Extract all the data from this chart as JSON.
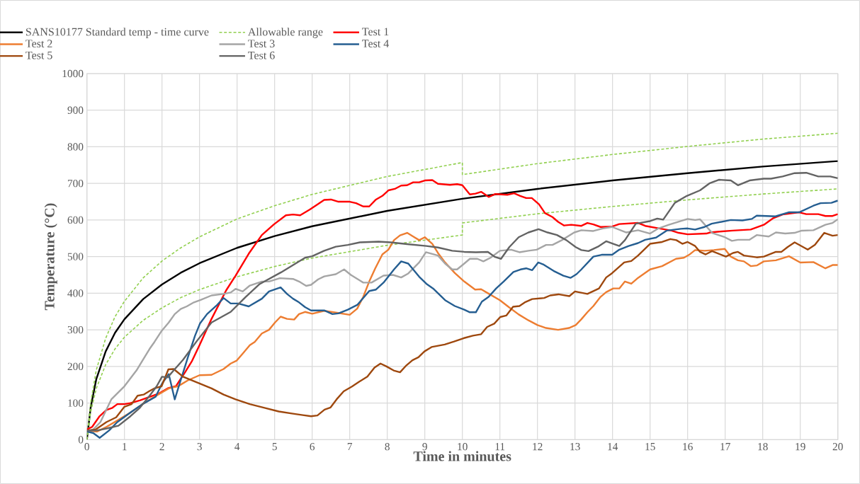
{
  "chart_data": {
    "type": "line",
    "xlabel": "Time in minutes",
    "ylabel": "Temperature (°C)",
    "xlim": [
      0,
      20
    ],
    "xticks": [
      0,
      1,
      2,
      3,
      4,
      5,
      6,
      7,
      8,
      9,
      10,
      11,
      12,
      13,
      14,
      15,
      16,
      17,
      18,
      19,
      20
    ],
    "ylim": [
      0,
      1000
    ],
    "yticks": [
      0,
      100,
      200,
      300,
      400,
      500,
      600,
      700,
      800,
      900,
      1000
    ],
    "grid": true,
    "legend": "top",
    "series": [
      {
        "name": "SANS10177 Standard temp - time curve",
        "color": "#000000",
        "line_style": "solid",
        "x": [
          0,
          0.1,
          0.25,
          0.5,
          0.75,
          1,
          1.5,
          2,
          2.5,
          3,
          4,
          5,
          6,
          8,
          10,
          12,
          14,
          16,
          18,
          20
        ],
        "values": [
          0,
          88,
          165,
          241,
          292,
          329,
          384,
          424,
          456,
          482,
          524,
          556,
          583,
          625,
          658,
          685,
          708,
          728,
          746,
          761
        ]
      },
      {
        "name": "Allowable range",
        "color": "#92d050",
        "line_style": "dashed",
        "x": [
          0,
          0.1,
          0.25,
          0.5,
          0.75,
          1,
          1.5,
          2,
          2.5,
          3,
          4,
          5,
          6,
          8,
          10,
          10,
          12,
          14,
          16,
          18,
          20
        ],
        "values": [
          0,
          101,
          190,
          277,
          336,
          378,
          442,
          488,
          524,
          554,
          603,
          639,
          670,
          719,
          757,
          724,
          754,
          779,
          801,
          821,
          837
        ]
      },
      {
        "color": "#92d050",
        "line_style": "dashed",
        "x": [
          0,
          0.1,
          0.25,
          0.5,
          0.75,
          1,
          1.5,
          2,
          2.5,
          3,
          4,
          5,
          6,
          8,
          10,
          10,
          12,
          14,
          16,
          18,
          20
        ],
        "values": [
          0,
          75,
          140,
          205,
          248,
          280,
          326,
          360,
          388,
          410,
          445,
          473,
          496,
          531,
          559,
          592,
          617,
          637,
          655,
          671,
          685
        ]
      },
      {
        "name": "Test 1",
        "color": "#ff0000",
        "line_style": "solid",
        "x": [
          0,
          0.14,
          0.33,
          0.52,
          0.68,
          0.81,
          1.0,
          1.16,
          1.41,
          1.67,
          1.92,
          2.17,
          2.37,
          2.62,
          2.8,
          3.0,
          3.32,
          3.71,
          3.96,
          4.31,
          4.66,
          4.98,
          5.3,
          5.49,
          5.68,
          5.94,
          6.16,
          6.32,
          6.5,
          6.7,
          7,
          7.17,
          7.36,
          7.52,
          7.7,
          7.87,
          8.03,
          8.2,
          8.37,
          8.53,
          8.69,
          8.85,
          9,
          9.2,
          9.35,
          9.67,
          9.86,
          10,
          10.2,
          10.35,
          10.5,
          10.7,
          10.88,
          11.2,
          11.38,
          11.54,
          11.7,
          11.85,
          12.04,
          12.2,
          12.4,
          12.55,
          12.71,
          12.9,
          13.17,
          13.33,
          13.49,
          13.68,
          13.99,
          14.18,
          14.68,
          14.87,
          15.25,
          15.57,
          15.76,
          16.0,
          16.5,
          16.6,
          16.8,
          17.2,
          17.68,
          18.03,
          18.28,
          18.53,
          18.97,
          19.16,
          19.48,
          19.67,
          19.86,
          20
        ],
        "values": [
          28,
          35,
          63,
          81,
          87,
          97,
          97,
          100,
          107,
          117,
          126,
          141,
          146,
          185,
          215,
          258,
          330,
          408,
          448,
          508,
          559,
          588,
          613,
          615,
          613,
          629,
          644,
          655,
          656,
          650,
          650,
          646,
          637,
          637,
          656,
          666,
          681,
          685,
          694,
          695,
          703,
          703,
          708,
          709,
          699,
          696,
          698,
          695,
          670,
          672,
          677,
          663,
          671,
          669,
          673,
          666,
          660,
          660,
          643,
          619,
          608,
          595,
          585,
          587,
          584,
          592,
          588,
          581,
          582,
          589,
          592,
          584,
          577,
          571,
          565,
          561,
          563,
          566,
          568,
          571,
          574,
          587,
          605,
          615,
          621,
          616,
          616,
          611,
          611,
          616
        ]
      },
      {
        "name": "Test 2",
        "color": "#ed7d31",
        "line_style": "solid",
        "x": [
          0,
          0.27,
          0.52,
          0.84,
          1.16,
          1.48,
          1.8,
          2.18,
          2.43,
          2.69,
          3.0,
          3.32,
          3.64,
          3.83,
          3.99,
          4.15,
          4.34,
          4.47,
          4.66,
          4.85,
          5.01,
          5.16,
          5.33,
          5.52,
          5.65,
          5.81,
          6.0,
          6.32,
          6.63,
          7.0,
          7.2,
          7.36,
          7.52,
          7.68,
          7.87,
          8.03,
          8.18,
          8.34,
          8.53,
          8.69,
          8.85,
          9.0,
          9.2,
          9.35,
          9.54,
          9.8,
          10.05,
          10.34,
          10.5,
          10.68,
          11.0,
          11.25,
          11.5,
          11.76,
          12.0,
          12.23,
          12.55,
          12.84,
          13.02,
          13.17,
          13.33,
          13.49,
          13.68,
          13.83,
          14.02,
          14.18,
          14.33,
          14.5,
          14.68,
          15.0,
          15.32,
          15.69,
          15.9,
          16.04,
          16.2,
          16.45,
          16.7,
          16.99,
          17.15,
          17.34,
          17.5,
          17.68,
          17.85,
          18.03,
          18.35,
          18.7,
          19.0,
          19.35,
          19.67,
          19.86,
          20
        ],
        "values": [
          25,
          22,
          35,
          54,
          74,
          97,
          117,
          140,
          146,
          162,
          176,
          177,
          193,
          208,
          216,
          235,
          258,
          267,
          290,
          300,
          320,
          336,
          330,
          328,
          343,
          349,
          344,
          352,
          347,
          341,
          358,
          390,
          432,
          468,
          506,
          519,
          545,
          558,
          565,
          555,
          545,
          553,
          535,
          510,
          484,
          455,
          432,
          410,
          411,
          400,
          381,
          361,
          342,
          326,
          313,
          305,
          300,
          305,
          313,
          329,
          348,
          365,
          390,
          403,
          413,
          413,
          432,
          426,
          442,
          465,
          474,
          494,
          497,
          505,
          518,
          516,
          518,
          521,
          500,
          490,
          487,
          474,
          476,
          487,
          490,
          501,
          484,
          485,
          468,
          477,
          477
        ]
      },
      {
        "name": "Test 3",
        "color": "#a5a5a5",
        "line_style": "solid",
        "x": [
          0,
          0.17,
          0.36,
          0.65,
          1.0,
          1.32,
          1.67,
          1.8,
          1.99,
          2.18,
          2.34,
          2.5,
          2.66,
          2.85,
          3.04,
          3.32,
          3.64,
          3.83,
          3.96,
          4.15,
          4.34,
          4.66,
          4.85,
          5.14,
          5.49,
          5.65,
          5.84,
          5.97,
          6.16,
          6.32,
          6.63,
          6.85,
          7.03,
          7.36,
          7.58,
          7.9,
          8.15,
          8.37,
          8.56,
          8.85,
          9.03,
          9.35,
          9.54,
          9.73,
          9.86,
          10.05,
          10.2,
          10.4,
          10.56,
          10.75,
          11.0,
          11.3,
          11.52,
          11.76,
          11.98,
          12.23,
          12.4,
          12.65,
          12.98,
          13.17,
          13.49,
          13.74,
          13.99,
          14.37,
          14.68,
          15.0,
          15.22,
          15.5,
          16.0,
          16.2,
          16.33,
          16.65,
          16.99,
          17.18,
          17.34,
          17.65,
          17.84,
          18.16,
          18.35,
          18.6,
          18.85,
          19.04,
          19.35,
          19.67,
          19.86,
          20
        ],
        "values": [
          22,
          28,
          48,
          110,
          146,
          189,
          248,
          267,
          297,
          320,
          343,
          357,
          364,
          375,
          382,
          394,
          398,
          402,
          412,
          405,
          421,
          432,
          432,
          441,
          439,
          432,
          420,
          423,
          438,
          446,
          452,
          465,
          450,
          429,
          429,
          448,
          450,
          443,
          454,
          484,
          512,
          503,
          481,
          465,
          465,
          481,
          494,
          494,
          487,
          497,
          516,
          519,
          512,
          516,
          519,
          532,
          532,
          545,
          566,
          572,
          570,
          577,
          581,
          566,
          572,
          563,
          577,
          587,
          603,
          600,
          602,
          565,
          553,
          543,
          546,
          546,
          559,
          555,
          566,
          563,
          565,
          571,
          572,
          587,
          592,
          602
        ]
      },
      {
        "name": "Test 4",
        "color": "#255e91",
        "line_style": "solid",
        "x": [
          0,
          0.17,
          0.34,
          0.59,
          0.81,
          1.16,
          1.48,
          1.83,
          2.0,
          2.18,
          2.34,
          2.5,
          2.69,
          2.88,
          3.01,
          3.2,
          3.45,
          3.64,
          3.83,
          4.03,
          4.31,
          4.66,
          4.85,
          5.16,
          5.33,
          5.49,
          5.65,
          5.81,
          5.97,
          6.32,
          6.54,
          6.7,
          6.95,
          7.2,
          7.52,
          7.7,
          7.9,
          8.18,
          8.37,
          8.56,
          8.85,
          9.04,
          9.22,
          9.54,
          9.8,
          10.05,
          10.2,
          10.36,
          10.52,
          10.7,
          10.9,
          11.1,
          11.36,
          11.55,
          11.7,
          11.86,
          12.02,
          12.15,
          12.43,
          12.69,
          12.88,
          13.04,
          13.17,
          13.49,
          13.71,
          13.99,
          14.18,
          14.43,
          14.68,
          14.87,
          15.16,
          15.44,
          15.82,
          16.0,
          16.2,
          16.45,
          16.64,
          17.15,
          17.46,
          17.71,
          17.84,
          18.34,
          18.69,
          18.97,
          19.35,
          19.54,
          19.83,
          20
        ],
        "values": [
          22,
          18,
          5,
          25,
          48,
          74,
          97,
          117,
          153,
          179,
          110,
          163,
          225,
          284,
          317,
          343,
          366,
          387,
          372,
          372,
          364,
          385,
          405,
          416,
          398,
          385,
          375,
          362,
          353,
          353,
          343,
          345,
          355,
          368,
          406,
          410,
          429,
          465,
          487,
          481,
          445,
          426,
          413,
          381,
          365,
          355,
          348,
          348,
          377,
          390,
          413,
          432,
          458,
          465,
          468,
          463,
          484,
          479,
          461,
          448,
          442,
          452,
          465,
          500,
          505,
          505,
          519,
          529,
          537,
          546,
          552,
          571,
          576,
          577,
          574,
          581,
          590,
          600,
          599,
          603,
          612,
          610,
          621,
          621,
          639,
          646,
          647,
          653
        ]
      },
      {
        "name": "Test 5",
        "color": "#9e480e",
        "line_style": "solid",
        "x": [
          0,
          0.24,
          0.52,
          0.78,
          1.0,
          1.19,
          1.35,
          1.51,
          1.67,
          1.8,
          1.99,
          2.17,
          2.31,
          2.56,
          2.94,
          3.32,
          3.64,
          3.96,
          4.34,
          4.73,
          5.11,
          5.49,
          5.75,
          5.97,
          6.14,
          6.33,
          6.49,
          6.65,
          6.84,
          7.06,
          7.25,
          7.47,
          7.66,
          7.82,
          7.98,
          8.17,
          8.34,
          8.51,
          8.67,
          8.83,
          8.99,
          9.18,
          9.53,
          9.78,
          10.03,
          10.28,
          10.5,
          10.66,
          10.85,
          11.01,
          11.17,
          11.35,
          11.52,
          11.68,
          11.86,
          12.18,
          12.34,
          12.56,
          12.85,
          13.0,
          13.33,
          13.64,
          13.83,
          13.99,
          14.31,
          14.5,
          14.68,
          15.0,
          15.32,
          15.54,
          15.7,
          15.86,
          16.0,
          16.2,
          16.33,
          16.48,
          16.65,
          17.02,
          17.21,
          17.34,
          17.5,
          17.84,
          18.03,
          18.35,
          18.5,
          18.66,
          18.85,
          19.2,
          19.39,
          19.64,
          19.86,
          20
        ],
        "values": [
          25,
          28,
          48,
          61,
          90,
          97,
          120,
          123,
          133,
          140,
          146,
          192,
          193,
          172,
          156,
          140,
          123,
          110,
          97,
          87,
          77,
          71,
          67,
          64,
          66,
          82,
          88,
          110,
          132,
          145,
          158,
          172,
          197,
          208,
          200,
          189,
          184,
          203,
          217,
          225,
          241,
          253,
          260,
          268,
          277,
          284,
          288,
          308,
          317,
          335,
          339,
          363,
          365,
          376,
          384,
          387,
          394,
          397,
          392,
          405,
          398,
          413,
          443,
          455,
          484,
          488,
          503,
          535,
          540,
          548,
          545,
          535,
          540,
          529,
          513,
          506,
          515,
          500,
          510,
          513,
          503,
          498,
          500,
          513,
          513,
          526,
          539,
          519,
          532,
          565,
          557,
          559
        ]
      },
      {
        "name": "Test 6",
        "color": "#636363",
        "line_style": "solid",
        "x": [
          0,
          0.27,
          0.55,
          0.84,
          1.16,
          1.41,
          1.67,
          1.86,
          2.0,
          2.15,
          2.31,
          2.56,
          2.94,
          3.32,
          3.83,
          4.22,
          4.6,
          5.17,
          5.81,
          6.0,
          6.32,
          6.63,
          6.95,
          7.27,
          7.77,
          8.09,
          8.53,
          9.04,
          9.35,
          9.73,
          10.05,
          10.36,
          10.68,
          10.87,
          11.03,
          11.25,
          11.5,
          11.76,
          12.03,
          12.27,
          12.52,
          12.77,
          13.02,
          13.17,
          13.36,
          13.61,
          13.83,
          14.02,
          14.18,
          14.33,
          14.62,
          15.0,
          15.19,
          15.35,
          15.66,
          15.98,
          16.33,
          16.58,
          16.83,
          17.15,
          17.34,
          17.65,
          18.03,
          18.22,
          18.53,
          18.85,
          19.16,
          19.48,
          19.8,
          20
        ],
        "values": [
          25,
          25,
          31,
          38,
          64,
          87,
          120,
          146,
          172,
          170,
          189,
          218,
          271,
          320,
          349,
          389,
          425,
          457,
          497,
          501,
          516,
          527,
          532,
          539,
          541,
          539,
          534,
          529,
          525,
          516,
          513,
          512,
          513,
          499,
          494,
          526,
          553,
          566,
          575,
          566,
          559,
          545,
          526,
          518,
          515,
          527,
          542,
          535,
          529,
          545,
          590,
          597,
          604,
          601,
          647,
          666,
          681,
          700,
          710,
          708,
          695,
          708,
          713,
          713,
          719,
          728,
          729,
          719,
          719,
          714
        ]
      }
    ]
  }
}
